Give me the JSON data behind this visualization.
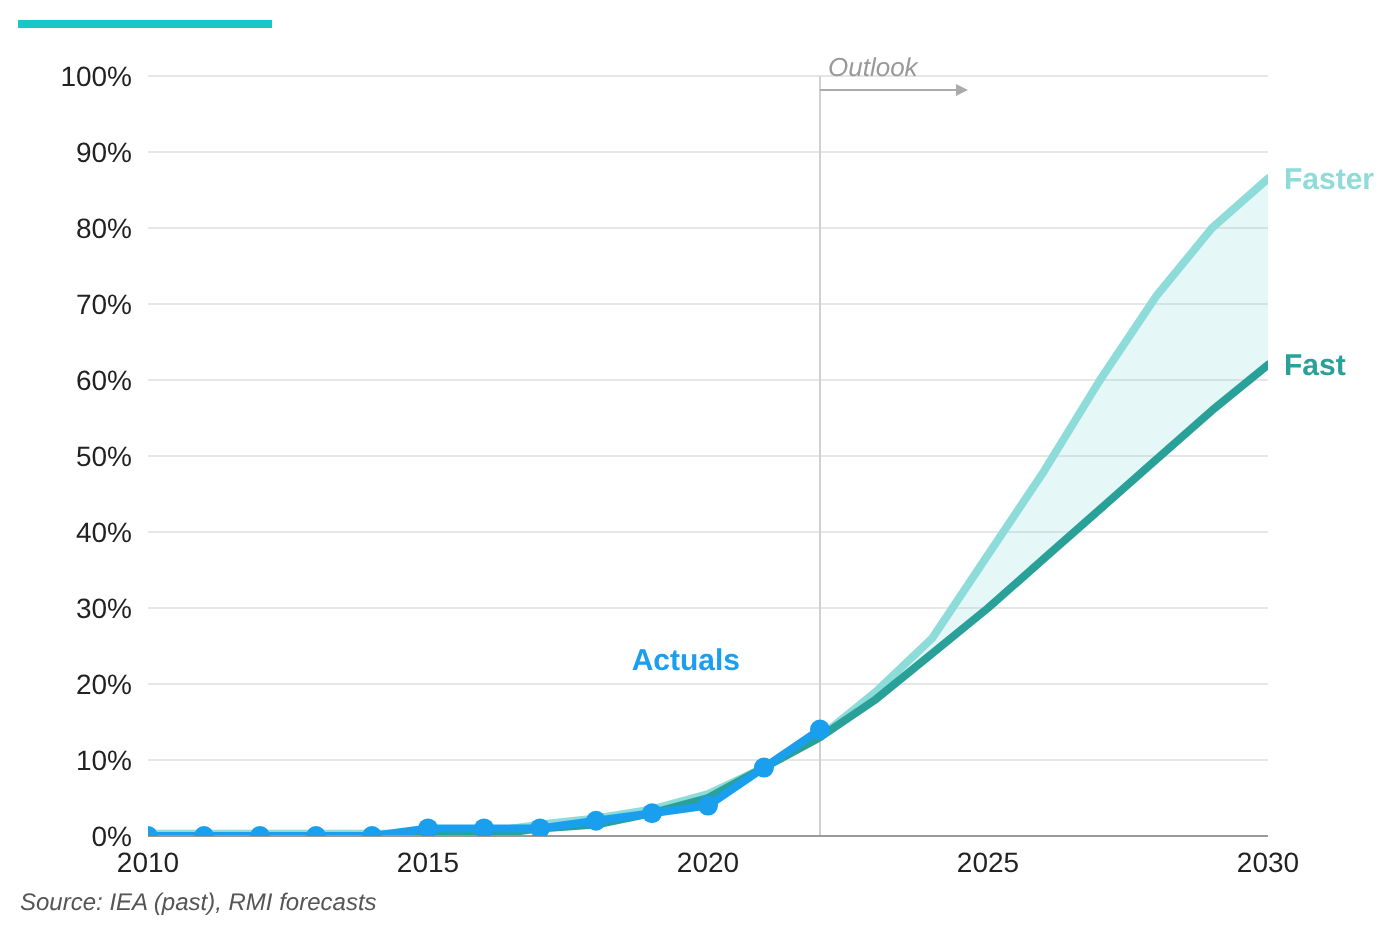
{
  "chart_data": {
    "type": "line",
    "x": [
      2010,
      2011,
      2012,
      2013,
      2014,
      2015,
      2016,
      2017,
      2018,
      2019,
      2020,
      2021,
      2022,
      2023,
      2024,
      2025,
      2026,
      2027,
      2028,
      2029,
      2030
    ],
    "series": [
      {
        "name": "Faster",
        "color": "#8ddcd9",
        "marker": "none",
        "values": [
          0.3,
          0.3,
          0.3,
          0.3,
          0.3,
          0.3,
          0.5,
          1.5,
          2.3,
          3.5,
          5.5,
          9,
          13,
          19,
          26,
          37,
          48,
          60,
          71,
          80,
          86.5
        ],
        "lower": [
          null,
          null,
          null,
          null,
          null,
          null,
          null,
          null,
          null,
          null,
          null,
          null,
          13,
          18,
          24,
          30,
          36.5,
          43,
          49.5,
          56,
          62
        ],
        "upper": [
          null,
          null,
          null,
          null,
          null,
          null,
          null,
          null,
          null,
          null,
          null,
          null,
          13,
          19,
          26,
          37,
          48,
          60,
          71,
          80,
          86.5
        ]
      },
      {
        "name": "Fast",
        "color": "#2aa198",
        "marker": "none",
        "values": [
          0,
          0,
          0,
          0,
          0,
          0,
          0,
          1,
          1.5,
          3,
          5,
          9,
          13,
          18,
          24,
          30,
          36.5,
          43,
          49.5,
          56,
          62
        ]
      },
      {
        "name": "Actuals",
        "color": "#1a9fef",
        "marker": "circle",
        "values": [
          0,
          0,
          0,
          0,
          0,
          1,
          1,
          1,
          2,
          3,
          4,
          9,
          14,
          null,
          null,
          null,
          null,
          null,
          null,
          null,
          null
        ]
      }
    ],
    "xlim": [
      2010,
      2030
    ],
    "xticks": [
      2010,
      2015,
      2020,
      2025,
      2030
    ],
    "ylim": [
      0,
      100
    ],
    "yticks": [
      {
        "value": 0,
        "label": "0%"
      },
      {
        "value": 10,
        "label": "10%"
      },
      {
        "value": 20,
        "label": "20%"
      },
      {
        "value": 30,
        "label": "30%"
      },
      {
        "value": 40,
        "label": "40%"
      },
      {
        "value": 50,
        "label": "50%"
      },
      {
        "value": 60,
        "label": "60%"
      },
      {
        "value": 70,
        "label": "70%"
      },
      {
        "value": 80,
        "label": "80%"
      },
      {
        "value": 90,
        "label": "90%"
      },
      {
        "value": 100,
        "label": "100%"
      }
    ],
    "grid": "y",
    "legend": false,
    "line_style": "solid",
    "ref_lines": [
      {
        "axis": "x",
        "value": 2022,
        "label": "Outlook",
        "color": "#d0d0d0"
      }
    ],
    "annotations": [
      "Source: IEA (past), RMI forecasts"
    ]
  }
}
